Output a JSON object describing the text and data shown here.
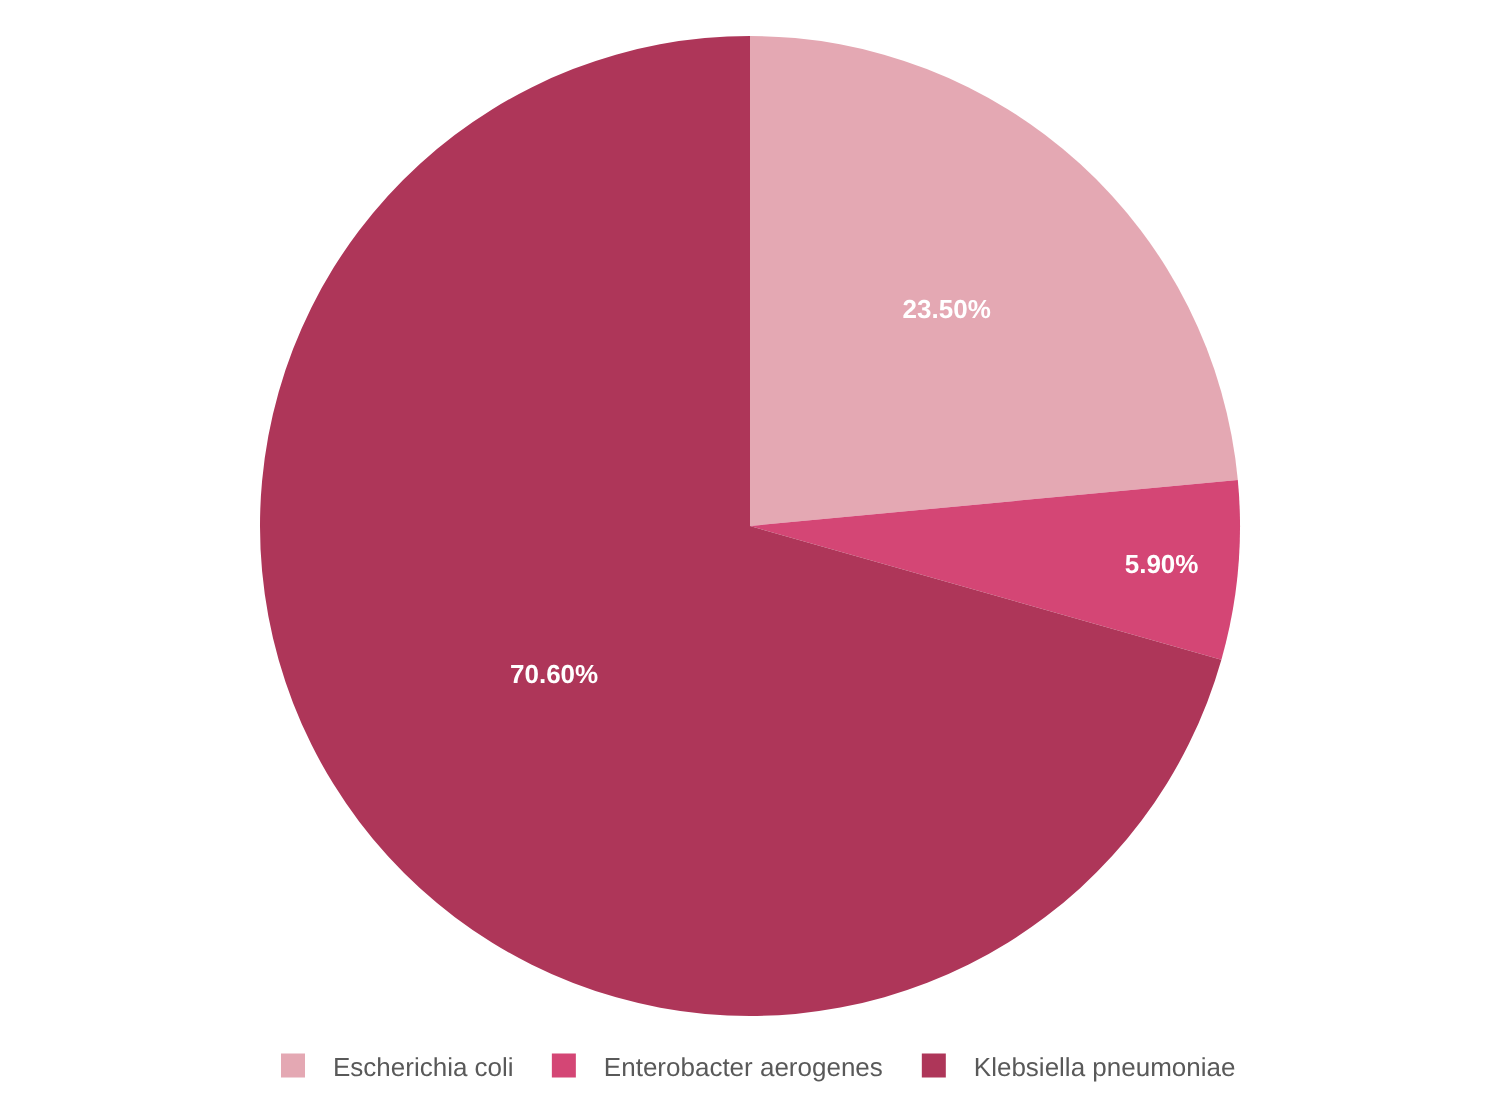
{
  "chart_data": {
    "type": "pie",
    "categories": [
      "Escherichia coli",
      "Enterobacter aerogenes",
      "Klebsiella pneumoniae"
    ],
    "values": [
      23.5,
      5.9,
      70.6
    ],
    "colors": [
      "#e4a8b3",
      "#d44675",
      "#ae3659"
    ],
    "value_labels": [
      "23.50%",
      "5.90%",
      "70.60%"
    ],
    "legend": "bottom"
  }
}
